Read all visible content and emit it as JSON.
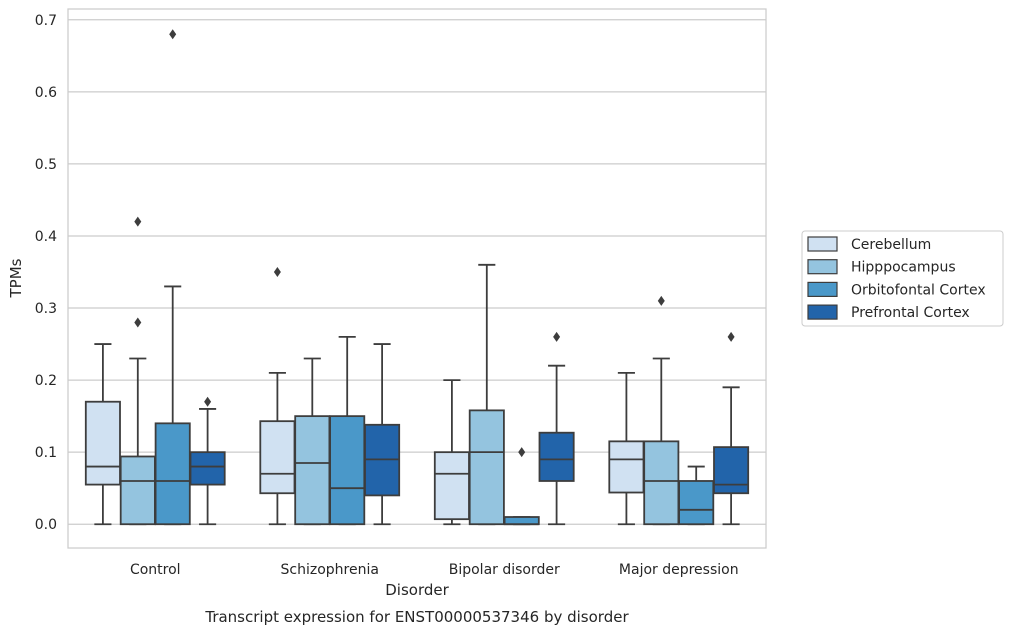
{
  "chart_data": {
    "type": "box",
    "caption": "Transcript expression for ENST00000537346 by disorder",
    "xlabel": "Disorder",
    "ylabel": "TPMs",
    "ylim": [
      -0.033,
      0.715
    ],
    "yticks": [
      "0.0",
      "0.1",
      "0.2",
      "0.3",
      "0.4",
      "0.5",
      "0.6",
      "0.7"
    ],
    "grid": true,
    "legend_position": "right",
    "categories": [
      "Control",
      "Schizophrenia",
      "Bipolar disorder",
      "Major depression"
    ],
    "series": [
      {
        "name": "Cerebellum",
        "color": "#d0e1f2",
        "boxes": [
          {
            "whislo": 0.0,
            "q1": 0.055,
            "med": 0.08,
            "q3": 0.17,
            "whishi": 0.25,
            "fliers": []
          },
          {
            "whislo": 0.0,
            "q1": 0.043,
            "med": 0.07,
            "q3": 0.143,
            "whishi": 0.21,
            "fliers": [
              0.35
            ]
          },
          {
            "whislo": 0.0,
            "q1": 0.007,
            "med": 0.07,
            "q3": 0.1,
            "whishi": 0.2,
            "fliers": []
          },
          {
            "whislo": 0.0,
            "q1": 0.044,
            "med": 0.09,
            "q3": 0.115,
            "whishi": 0.21,
            "fliers": []
          }
        ]
      },
      {
        "name": "Hipppocampus",
        "color": "#94c4df",
        "boxes": [
          {
            "whislo": 0.0,
            "q1": 0.0,
            "med": 0.06,
            "q3": 0.094,
            "whishi": 0.23,
            "fliers": [
              0.28,
              0.42
            ]
          },
          {
            "whislo": 0.0,
            "q1": 0.0,
            "med": 0.085,
            "q3": 0.15,
            "whishi": 0.23,
            "fliers": []
          },
          {
            "whislo": 0.0,
            "q1": 0.0,
            "med": 0.1,
            "q3": 0.158,
            "whishi": 0.36,
            "fliers": []
          },
          {
            "whislo": 0.0,
            "q1": 0.0,
            "med": 0.06,
            "q3": 0.115,
            "whishi": 0.23,
            "fliers": [
              0.31
            ]
          }
        ]
      },
      {
        "name": "Orbitofontal Cortex",
        "color": "#4a98c9",
        "boxes": [
          {
            "whislo": 0.0,
            "q1": 0.0,
            "med": 0.06,
            "q3": 0.14,
            "whishi": 0.33,
            "fliers": [
              0.68
            ]
          },
          {
            "whislo": 0.0,
            "q1": 0.0,
            "med": 0.05,
            "q3": 0.15,
            "whishi": 0.26,
            "fliers": []
          },
          {
            "whislo": 0.0,
            "q1": 0.0,
            "med": 0.0,
            "q3": 0.01,
            "whishi": 0.01,
            "fliers": [
              0.1
            ]
          },
          {
            "whislo": 0.0,
            "q1": 0.0,
            "med": 0.02,
            "q3": 0.06,
            "whishi": 0.08,
            "fliers": []
          }
        ]
      },
      {
        "name": "Prefrontal Cortex",
        "color": "#2264aa",
        "boxes": [
          {
            "whislo": 0.0,
            "q1": 0.055,
            "med": 0.08,
            "q3": 0.1,
            "whishi": 0.16,
            "fliers": [
              0.17
            ]
          },
          {
            "whislo": 0.0,
            "q1": 0.04,
            "med": 0.09,
            "q3": 0.138,
            "whishi": 0.25,
            "fliers": []
          },
          {
            "whislo": 0.0,
            "q1": 0.06,
            "med": 0.09,
            "q3": 0.127,
            "whishi": 0.22,
            "fliers": [
              0.26
            ]
          },
          {
            "whislo": 0.0,
            "q1": 0.043,
            "med": 0.055,
            "q3": 0.107,
            "whishi": 0.19,
            "fliers": [
              0.26
            ]
          }
        ]
      }
    ]
  }
}
